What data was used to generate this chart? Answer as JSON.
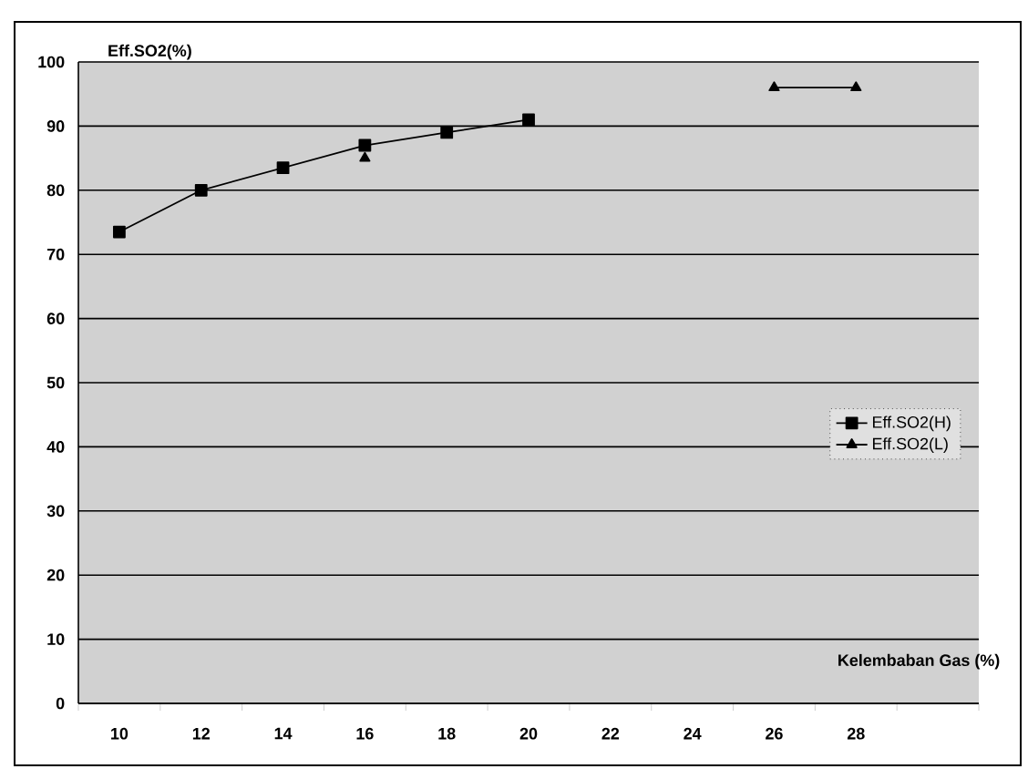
{
  "chart_data": {
    "type": "line",
    "xlabel": "Kelembaban Gas (%)",
    "ylabel": "Eff.SO2(%)",
    "categories": [
      "10",
      "12",
      "14",
      "16",
      "18",
      "20",
      "22",
      "24",
      "26",
      "28",
      null
    ],
    "ylim": [
      0,
      100
    ],
    "yticks": [
      0,
      10,
      20,
      30,
      40,
      50,
      60,
      70,
      80,
      90,
      100
    ],
    "grid": "y",
    "legend": "right",
    "line_style": "solid",
    "series": [
      {
        "name": "Eff.SO2(H)",
        "color": "#000000",
        "marker": "square",
        "values": [
          73.5,
          80,
          83.5,
          87,
          89,
          91,
          null,
          null,
          null,
          null,
          null
        ]
      },
      {
        "name": "Eff.SO2(L)",
        "color": "#000000",
        "marker": "triangle",
        "values": [
          null,
          null,
          null,
          85,
          null,
          null,
          null,
          null,
          96,
          96,
          null
        ]
      }
    ]
  }
}
